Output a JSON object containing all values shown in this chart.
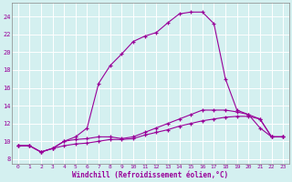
{
  "x_values": [
    0,
    1,
    2,
    3,
    4,
    5,
    6,
    7,
    8,
    9,
    10,
    11,
    12,
    13,
    14,
    15,
    16,
    17,
    18,
    19,
    20,
    21,
    22,
    23
  ],
  "line_main_y": [
    9.5,
    9.5,
    8.8,
    9.2,
    10.0,
    10.5,
    11.5,
    16.5,
    18.5,
    19.8,
    21.2,
    21.8,
    22.2,
    23.3,
    24.3,
    24.5,
    24.5,
    23.2,
    17.0,
    13.5,
    13.0,
    11.5,
    10.5,
    10.5
  ],
  "line_flat1_y": [
    9.5,
    9.5,
    8.8,
    9.2,
    10.0,
    10.2,
    10.3,
    10.5,
    10.5,
    10.3,
    10.5,
    11.0,
    11.5,
    12.0,
    12.5,
    13.0,
    13.5,
    13.5,
    13.5,
    13.3,
    13.0,
    12.5,
    10.5,
    10.5
  ],
  "line_flat2_y": [
    9.5,
    9.5,
    8.8,
    9.2,
    9.5,
    9.7,
    9.8,
    10.0,
    10.2,
    10.2,
    10.3,
    10.7,
    11.0,
    11.3,
    11.7,
    12.0,
    12.3,
    12.5,
    12.7,
    12.8,
    12.8,
    12.5,
    10.5,
    10.5
  ],
  "line_color": "#990099",
  "background_color": "#d4f0f0",
  "grid_color": "#ffffff",
  "xlabel": "Windchill (Refroidissement éolien,°C)",
  "ylim": [
    7.5,
    25.5
  ],
  "xlim": [
    -0.5,
    23.5
  ],
  "yticks": [
    8,
    10,
    12,
    14,
    16,
    18,
    20,
    22,
    24
  ],
  "xticks": [
    0,
    1,
    2,
    3,
    4,
    5,
    6,
    7,
    8,
    9,
    10,
    11,
    12,
    13,
    14,
    15,
    16,
    17,
    18,
    19,
    20,
    21,
    22,
    23
  ]
}
